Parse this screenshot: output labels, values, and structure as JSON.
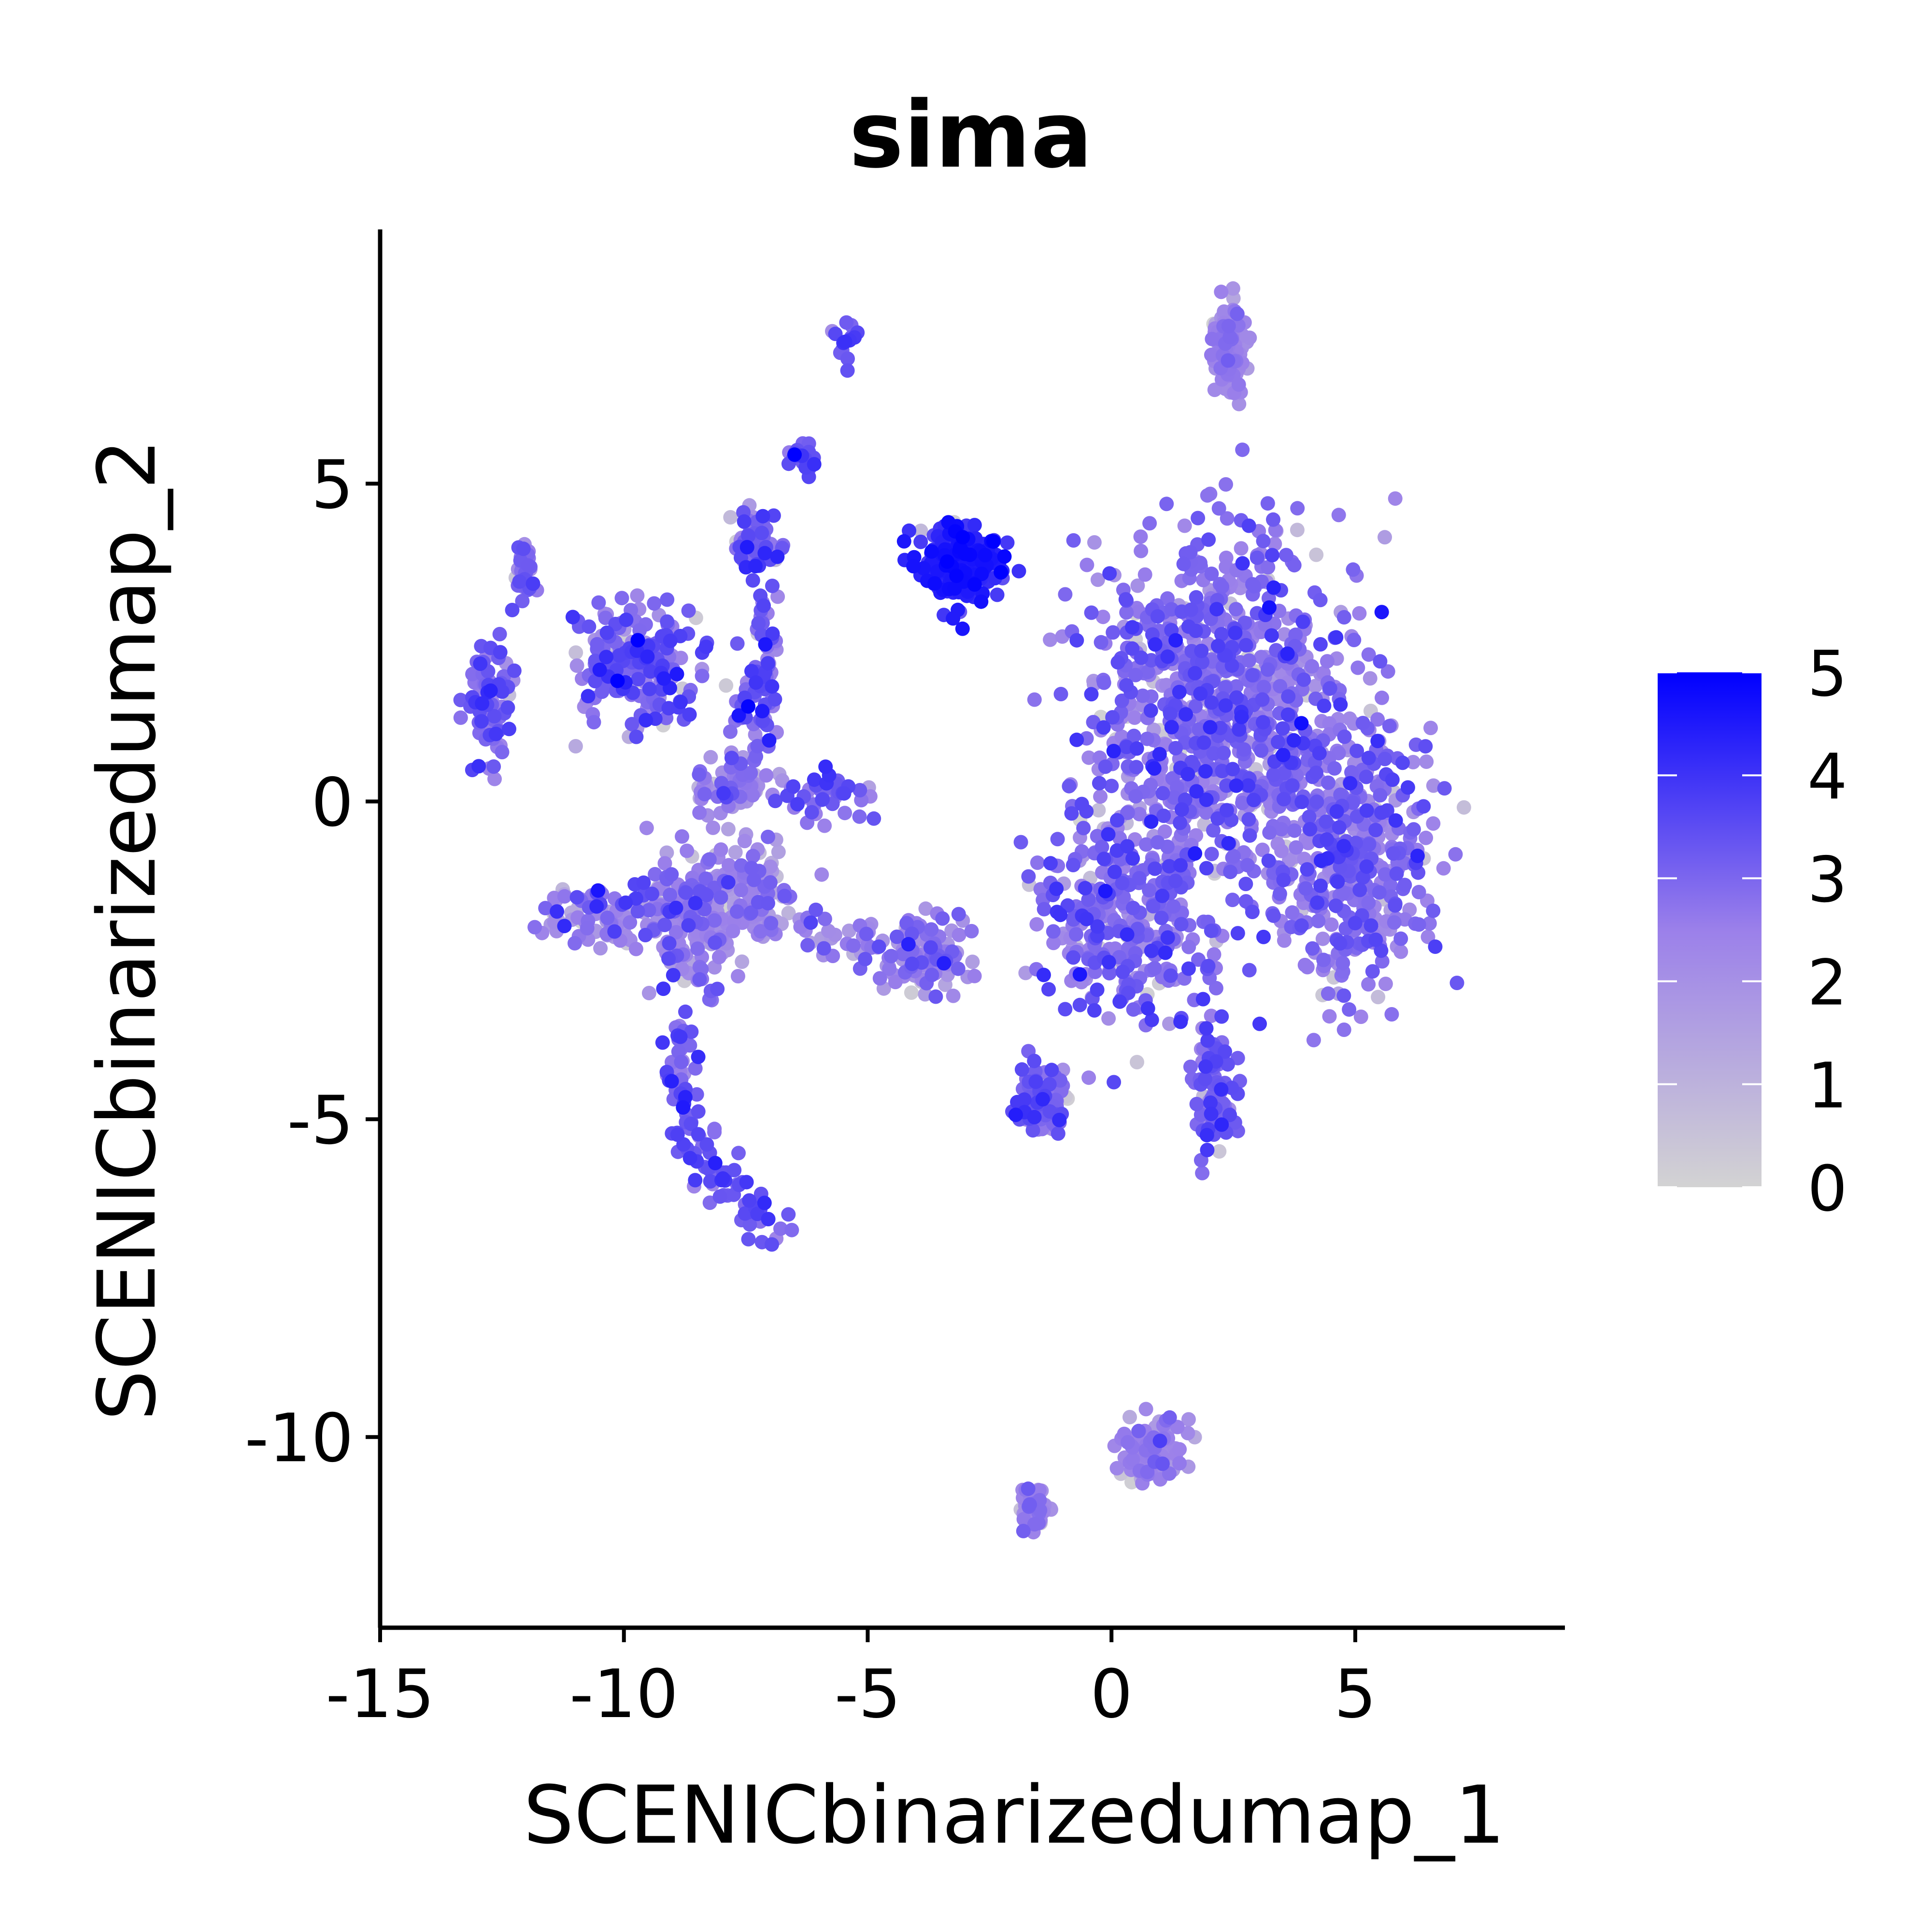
{
  "chart_data": {
    "type": "scatter",
    "title": "sima",
    "xlabel": "SCENICbinarizedumap_1",
    "ylabel": "SCENICbinarizedumap_2",
    "xlim": [
      -15,
      9.3
    ],
    "ylim": [
      -13,
      9
    ],
    "x_ticks": [
      -15,
      -10,
      -5,
      0,
      5
    ],
    "y_ticks": [
      -10,
      -5,
      0,
      5
    ],
    "x_tick_labels": [
      "-15",
      "-10",
      "-5",
      "0",
      "5"
    ],
    "y_tick_labels": [
      "-10",
      "-5",
      "0",
      "5"
    ],
    "grid": false,
    "legend": {
      "position": "right",
      "type": "colorbar",
      "min": 0,
      "max": 5,
      "ticks": [
        0,
        1,
        2,
        3,
        4,
        5
      ],
      "tick_labels": [
        "0",
        "1",
        "2",
        "3",
        "4",
        "5"
      ],
      "color_low": "#d3d3d3",
      "color_high": "#0000ff"
    },
    "clusters": [
      {
        "center": [
          2.2,
          1.5
        ],
        "spread": [
          2.4,
          2.6
        ],
        "n": 900,
        "mean": 2.9,
        "sd": 0.55
      },
      {
        "center": [
          4.8,
          -0.8
        ],
        "spread": [
          1.6,
          2.0
        ],
        "n": 420,
        "mean": 2.8,
        "sd": 0.55
      },
      {
        "center": [
          0.3,
          -1.8
        ],
        "spread": [
          1.6,
          1.4
        ],
        "n": 320,
        "mean": 2.9,
        "sd": 0.6
      },
      {
        "center": [
          -3.1,
          3.7
        ],
        "spread": [
          0.75,
          0.5
        ],
        "n": 260,
        "mean": 4.3,
        "sd": 0.35
      },
      {
        "center": [
          2.4,
          7.2
        ],
        "spread": [
          0.3,
          0.7
        ],
        "n": 130,
        "mean": 2.3,
        "sd": 0.35
      },
      {
        "center": [
          2.1,
          -4.5
        ],
        "spread": [
          0.35,
          0.9
        ],
        "n": 90,
        "mean": 3.2,
        "sd": 0.5
      },
      {
        "center": [
          -1.4,
          -4.7
        ],
        "spread": [
          0.5,
          0.5
        ],
        "n": 90,
        "mean": 3.1,
        "sd": 0.5
      },
      {
        "center": [
          0.8,
          -10.2
        ],
        "spread": [
          0.6,
          0.45
        ],
        "n": 110,
        "mean": 2.3,
        "sd": 0.5
      },
      {
        "center": [
          -1.6,
          -11.1
        ],
        "spread": [
          0.3,
          0.35
        ],
        "n": 50,
        "mean": 2.4,
        "sd": 0.4
      },
      {
        "center": [
          -3.8,
          -2.4
        ],
        "spread": [
          0.8,
          0.5
        ],
        "n": 110,
        "mean": 2.5,
        "sd": 0.6
      },
      {
        "center": [
          -9.8,
          2.2
        ],
        "spread": [
          1.1,
          0.9
        ],
        "n": 210,
        "mean": 3.0,
        "sd": 0.65
      },
      {
        "center": [
          -8.6,
          -1.8
        ],
        "spread": [
          0.9,
          1.0
        ],
        "n": 180,
        "mean": 2.4,
        "sd": 0.7
      },
      {
        "center": [
          -10.5,
          -1.8
        ],
        "spread": [
          1.0,
          0.4
        ],
        "n": 90,
        "mean": 2.5,
        "sd": 0.8
      },
      {
        "center": [
          -7.4,
          -1.4
        ],
        "spread": [
          0.7,
          0.6
        ],
        "n": 90,
        "mean": 2.2,
        "sd": 0.7
      },
      {
        "center": [
          -7.8,
          0.2
        ],
        "spread": [
          0.7,
          0.5
        ],
        "n": 80,
        "mean": 2.4,
        "sd": 0.8
      },
      {
        "center": [
          -12.7,
          1.5
        ],
        "spread": [
          0.45,
          0.8
        ],
        "n": 80,
        "mean": 3.0,
        "sd": 0.6
      },
      {
        "center": [
          -12.1,
          3.6
        ],
        "spread": [
          0.25,
          0.5
        ],
        "n": 35,
        "mean": 2.8,
        "sd": 0.5
      },
      {
        "center": [
          -7.3,
          4.1
        ],
        "spread": [
          0.45,
          0.45
        ],
        "n": 60,
        "mean": 2.9,
        "sd": 0.6
      },
      {
        "center": [
          -7.1,
          2.0
        ],
        "spread": [
          0.2,
          1.0
        ],
        "n": 50,
        "mean": 3.1,
        "sd": 0.6
      },
      {
        "center": [
          -6.3,
          5.4
        ],
        "spread": [
          0.3,
          0.25
        ],
        "n": 25,
        "mean": 3.4,
        "sd": 0.5
      },
      {
        "center": [
          -5.5,
          7.2
        ],
        "spread": [
          0.2,
          0.3
        ],
        "n": 14,
        "mean": 3.4,
        "sd": 0.5
      },
      {
        "center": [
          -5.8,
          0.1
        ],
        "spread": [
          0.8,
          0.3
        ],
        "n": 45,
        "mean": 3.0,
        "sd": 0.7
      }
    ],
    "arcs": [
      {
        "from": [
          -8.8,
          -3.6
        ],
        "via": [
          -9.3,
          -5.6
        ],
        "to": [
          -6.7,
          -6.7
        ],
        "n": 110,
        "jitter": 0.22,
        "mean": 3.3,
        "sd": 0.5
      },
      {
        "from": [
          -8.2,
          -1.6
        ],
        "via": [
          -5.8,
          -2.2
        ],
        "to": [
          -3.3,
          -2.4
        ],
        "n": 70,
        "jitter": 0.25,
        "mean": 2.5,
        "sd": 0.6
      },
      {
        "from": [
          -7.6,
          0.5
        ],
        "via": [
          -7.3,
          2.0
        ],
        "to": [
          -7.1,
          3.8
        ],
        "n": 40,
        "jitter": 0.2,
        "mean": 3.0,
        "sd": 0.6
      }
    ]
  }
}
